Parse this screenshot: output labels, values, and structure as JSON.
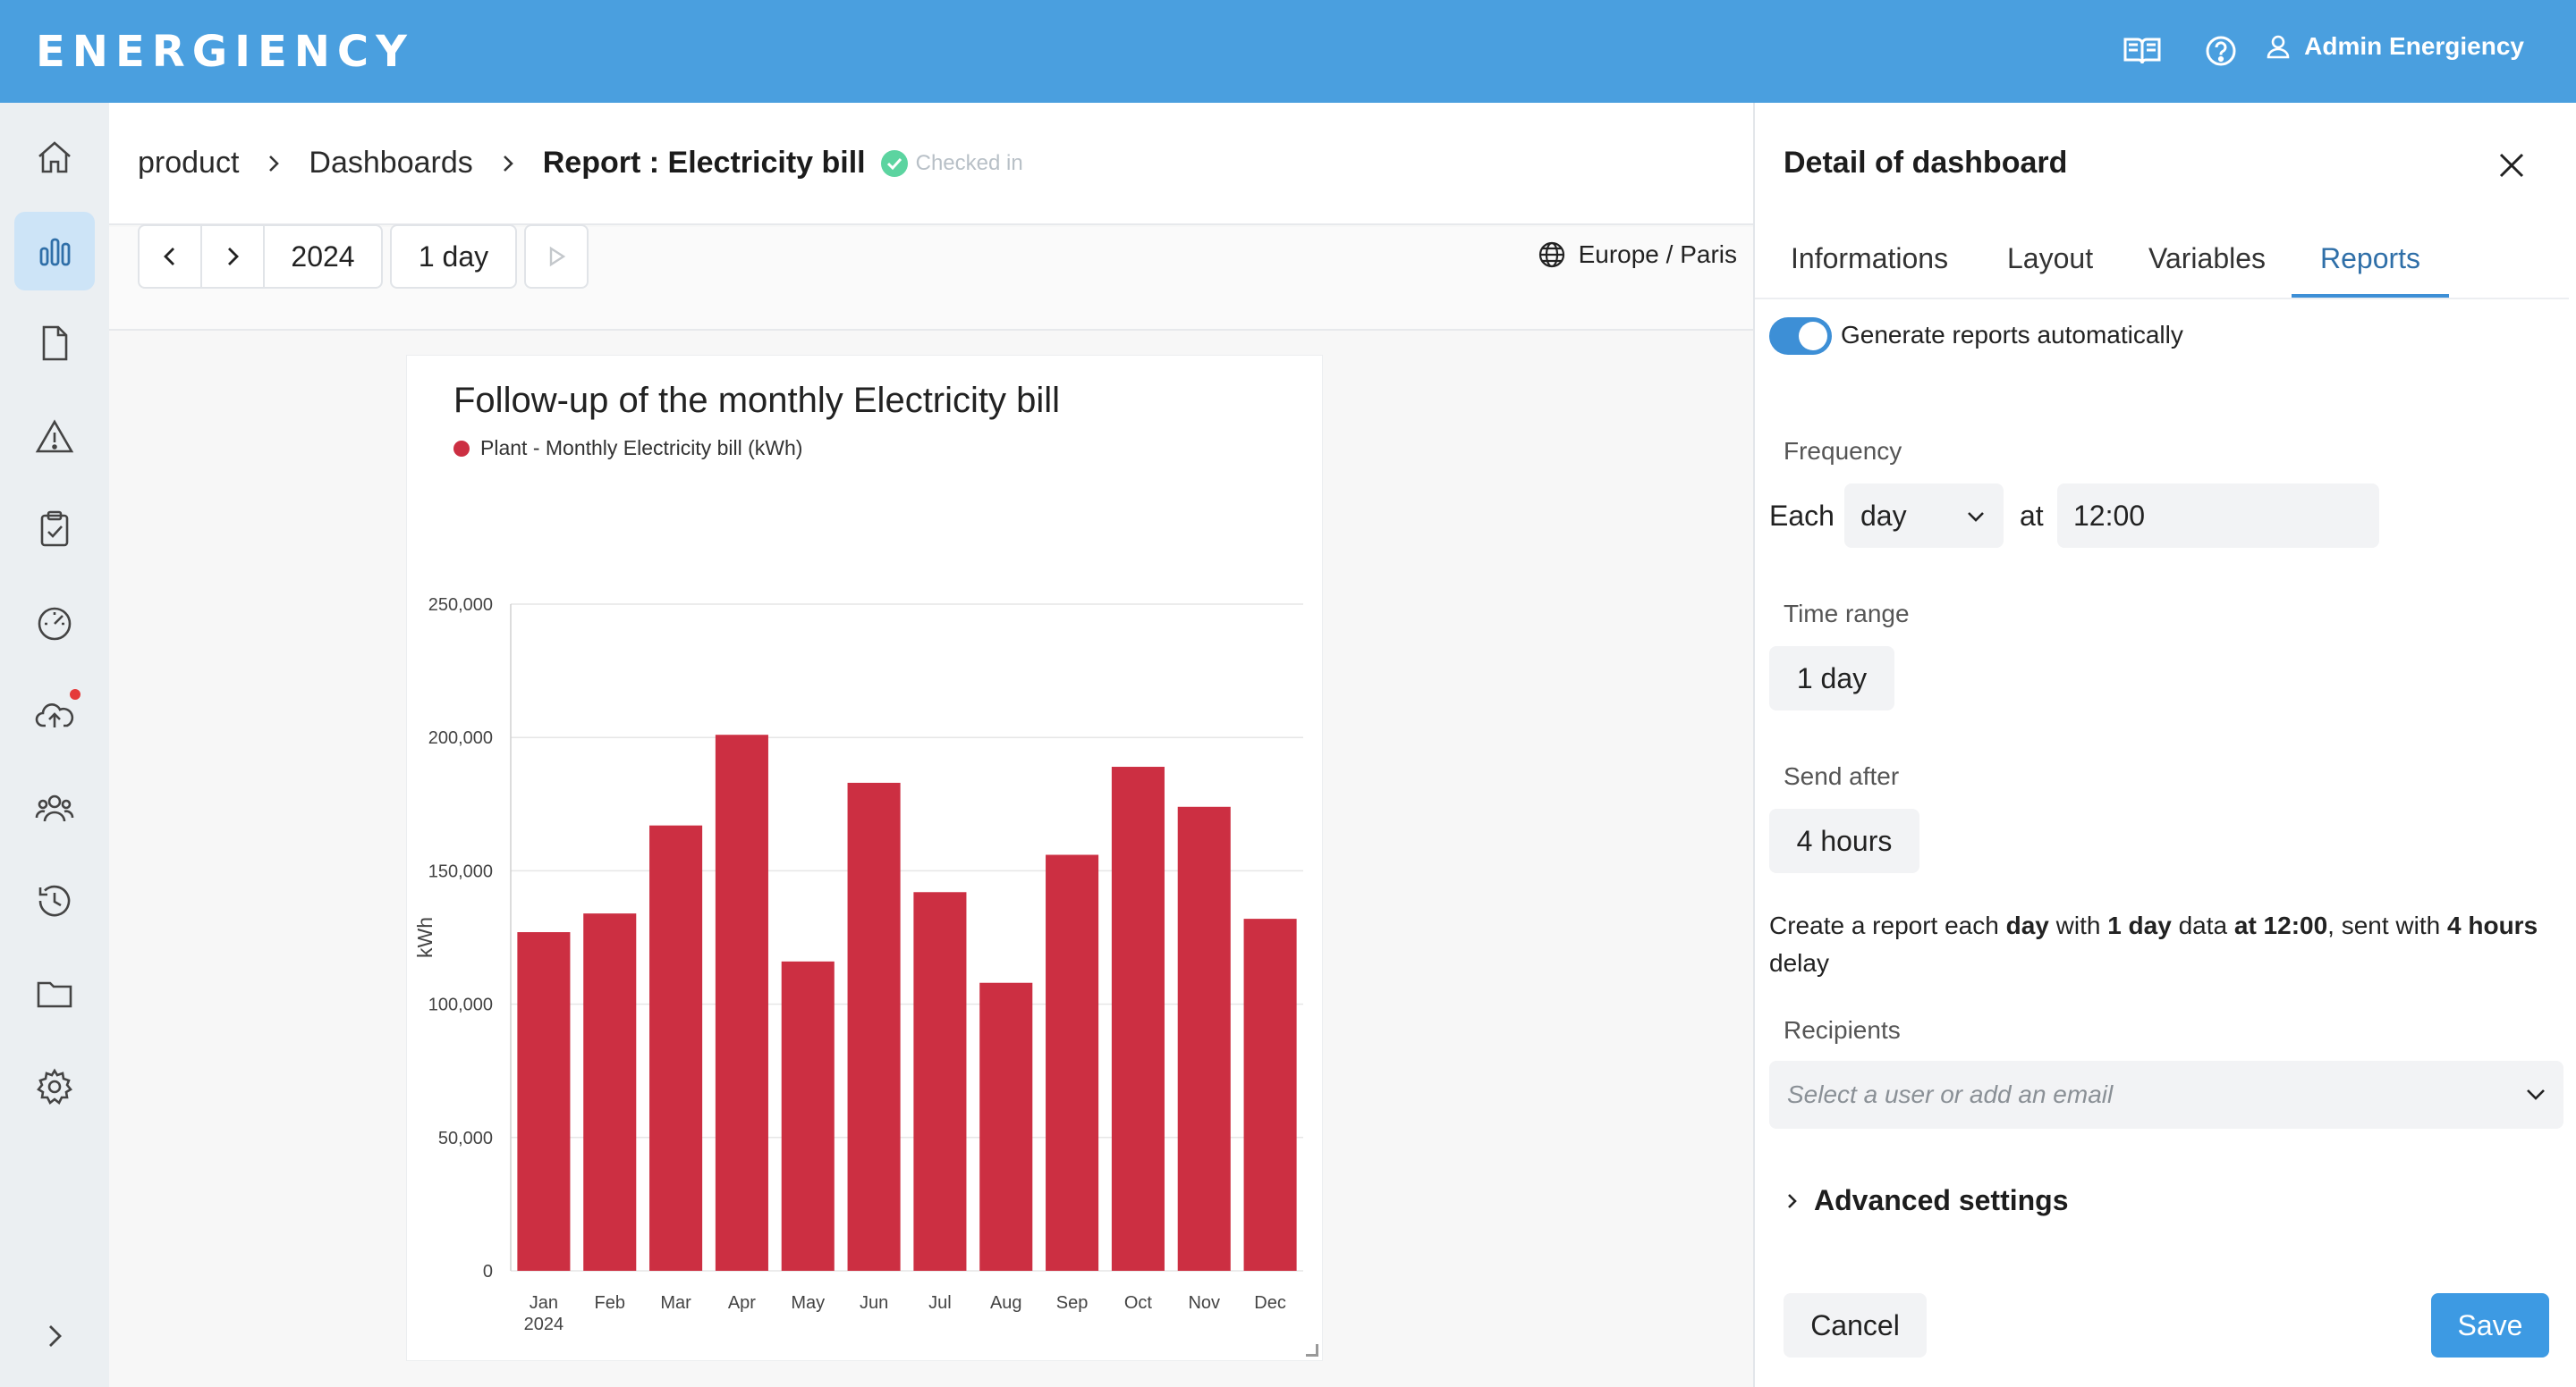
{
  "app": {
    "logo_text": "ENERGIENCY",
    "user_name": "Admin Energiency",
    "brand_color": "#4a9fdf",
    "icons": [
      "book-icon",
      "help-icon",
      "user-icon"
    ]
  },
  "sidebar": {
    "items": [
      {
        "name": "home-icon",
        "active": false
      },
      {
        "name": "bar-chart-icon",
        "active": true
      },
      {
        "name": "document-icon",
        "active": false
      },
      {
        "name": "warning-icon",
        "active": false
      },
      {
        "name": "clipboard-check-icon",
        "active": false
      },
      {
        "name": "gauge-icon",
        "active": false
      },
      {
        "name": "cloud-upload-icon",
        "active": false,
        "notification": true
      },
      {
        "name": "users-icon",
        "active": false
      },
      {
        "name": "history-icon",
        "active": false
      },
      {
        "name": "folder-icon",
        "active": false
      },
      {
        "name": "gear-icon",
        "active": false
      }
    ],
    "expand_icon": "chevron-right-icon"
  },
  "breadcrumb": {
    "items": [
      "product",
      "Dashboards"
    ],
    "current": "Report : Electricity bill",
    "status": "Checked in"
  },
  "toolbar": {
    "year": "2024",
    "range": "1 day",
    "timezone": "Europe / Paris"
  },
  "chart_data": {
    "type": "bar",
    "title": "Follow-up of the monthly Electricity bill",
    "legend": [
      "Plant - Monthly Electricity bill (kWh)"
    ],
    "ylabel": "kWh",
    "xlabel": "",
    "x_sublabel": "2024",
    "categories": [
      "Jan",
      "Feb",
      "Mar",
      "Apr",
      "May",
      "Jun",
      "Jul",
      "Aug",
      "Sep",
      "Oct",
      "Nov",
      "Dec"
    ],
    "series": [
      {
        "name": "Plant - Monthly Electricity bill (kWh)",
        "color": "#cc2f42",
        "values": [
          127000,
          134000,
          167000,
          201000,
          116000,
          183000,
          142000,
          108000,
          156000,
          189000,
          174000,
          132000
        ]
      }
    ],
    "ylim": [
      0,
      250000
    ],
    "yticks": [
      0,
      50000,
      100000,
      150000,
      200000,
      250000
    ],
    "ytick_labels": [
      "0",
      "50,000",
      "100,000",
      "150,000",
      "200,000",
      "250,000"
    ],
    "grid": true
  },
  "panel": {
    "title": "Detail of dashboard",
    "tabs": [
      "Informations",
      "Layout",
      "Variables",
      "Reports"
    ],
    "active_tab": "Reports",
    "auto_label": "Generate reports automatically",
    "frequency_label": "Frequency",
    "each_label": "Each",
    "frequency_value": "day",
    "at_label": "at",
    "time_value": "12:00",
    "time_range_label": "Time range",
    "time_range_value": "1 day",
    "send_after_label": "Send after",
    "send_after_value": "4 hours",
    "summary": {
      "p1": "Create a report each ",
      "b1": "day",
      "p2": " with ",
      "b2": "1 day",
      "p3": " data ",
      "b3": "at 12:00",
      "p4": ", sent with ",
      "b4": "4 hours",
      "p5": " delay"
    },
    "recipients_label": "Recipients",
    "recipients_placeholder": "Select a user or add an email",
    "advanced_label": "Advanced settings",
    "cancel_label": "Cancel",
    "save_label": "Save"
  }
}
